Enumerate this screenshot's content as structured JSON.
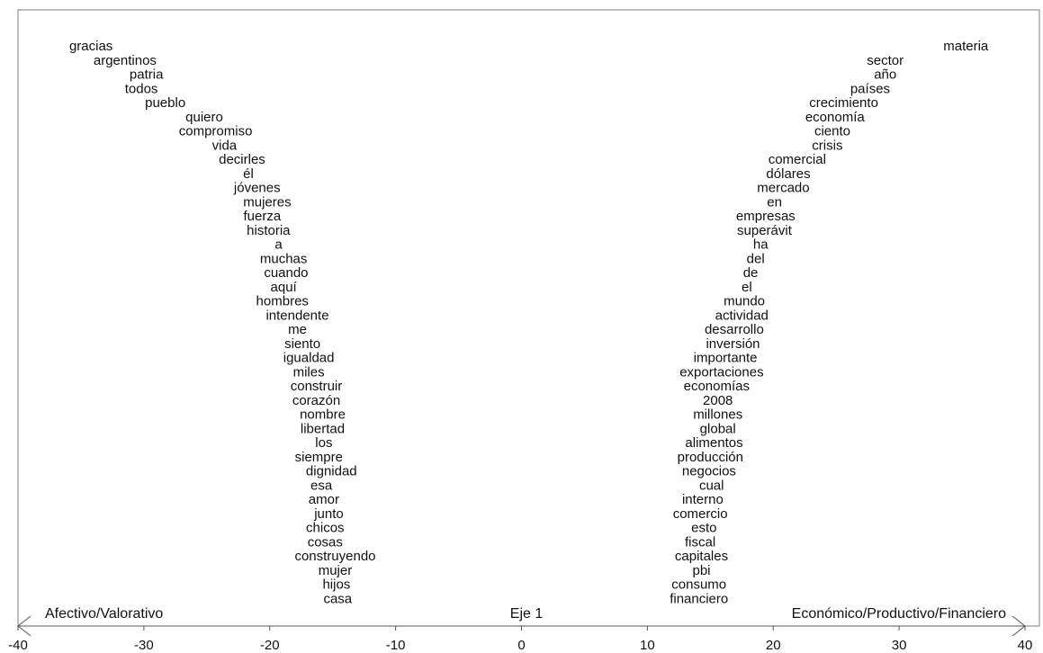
{
  "chart_data": {
    "type": "scatter",
    "xlim": [
      -40,
      40
    ],
    "xticks": [
      -40,
      -30,
      -20,
      -10,
      0,
      10,
      20,
      30,
      40
    ],
    "grid": false,
    "axis_title": "Eje 1",
    "left_pole_label": "Afectivo/Valorativo",
    "right_pole_label": "Económico/Productivo/Financiero",
    "left_words": [
      {
        "word": "gracias",
        "x": -34.2
      },
      {
        "word": "argentinos",
        "x": -31.5
      },
      {
        "word": "patria",
        "x": -29.8
      },
      {
        "word": "todos",
        "x": -30.2
      },
      {
        "word": "pueblo",
        "x": -28.3
      },
      {
        "word": "quiero",
        "x": -25.2
      },
      {
        "word": "compromiso",
        "x": -24.3
      },
      {
        "word": "vida",
        "x": -23.6
      },
      {
        "word": "decirles",
        "x": -22.2
      },
      {
        "word": "él",
        "x": -21.7
      },
      {
        "word": "jóvenes",
        "x": -21.0
      },
      {
        "word": "mujeres",
        "x": -20.2
      },
      {
        "word": "fuerza",
        "x": -20.6
      },
      {
        "word": "historia",
        "x": -20.1
      },
      {
        "word": "a",
        "x": -19.3
      },
      {
        "word": "muchas",
        "x": -18.9
      },
      {
        "word": "cuando",
        "x": -18.7
      },
      {
        "word": "aquí",
        "x": -18.9
      },
      {
        "word": "hombres",
        "x": -19.0
      },
      {
        "word": "intendente",
        "x": -17.8
      },
      {
        "word": "me",
        "x": -17.8
      },
      {
        "word": "siento",
        "x": -17.4
      },
      {
        "word": "igualdad",
        "x": -16.9
      },
      {
        "word": "miles",
        "x": -16.9
      },
      {
        "word": "construir",
        "x": -16.3
      },
      {
        "word": "corazón",
        "x": -16.3
      },
      {
        "word": "nombre",
        "x": -15.8
      },
      {
        "word": "libertad",
        "x": -15.8
      },
      {
        "word": "los",
        "x": -15.7
      },
      {
        "word": "siempre",
        "x": -16.1
      },
      {
        "word": "dignidad",
        "x": -15.1
      },
      {
        "word": "esa",
        "x": -15.9
      },
      {
        "word": "amor",
        "x": -15.7
      },
      {
        "word": "junto",
        "x": -15.3
      },
      {
        "word": "chicos",
        "x": -15.6
      },
      {
        "word": "cosas",
        "x": -15.6
      },
      {
        "word": "construyendo",
        "x": -14.8
      },
      {
        "word": "mujer",
        "x": -14.8
      },
      {
        "word": "hijos",
        "x": -14.7
      },
      {
        "word": "casa",
        "x": -14.6
      }
    ],
    "right_words": [
      {
        "word": "materia",
        "x": 35.3
      },
      {
        "word": "sector",
        "x": 28.9
      },
      {
        "word": "año",
        "x": 28.9
      },
      {
        "word": "países",
        "x": 27.7
      },
      {
        "word": "crecimiento",
        "x": 25.6
      },
      {
        "word": "economía",
        "x": 24.9
      },
      {
        "word": "ciento",
        "x": 24.7
      },
      {
        "word": "crisis",
        "x": 24.3
      },
      {
        "word": "comercial",
        "x": 21.9
      },
      {
        "word": "dólares",
        "x": 21.2
      },
      {
        "word": "mercado",
        "x": 20.8
      },
      {
        "word": "en",
        "x": 20.1
      },
      {
        "word": "empresas",
        "x": 19.4
      },
      {
        "word": "superávit",
        "x": 19.3
      },
      {
        "word": "ha",
        "x": 19.0
      },
      {
        "word": "del",
        "x": 18.6
      },
      {
        "word": "de",
        "x": 18.2
      },
      {
        "word": "el",
        "x": 17.9
      },
      {
        "word": "mundo",
        "x": 17.7
      },
      {
        "word": "actividad",
        "x": 17.5
      },
      {
        "word": "desarrollo",
        "x": 16.9
      },
      {
        "word": "inversión",
        "x": 16.8
      },
      {
        "word": "importante",
        "x": 16.2
      },
      {
        "word": "exportaciones",
        "x": 15.9
      },
      {
        "word": "economías",
        "x": 15.5
      },
      {
        "word": "2008",
        "x": 15.6
      },
      {
        "word": "millones",
        "x": 15.6
      },
      {
        "word": "global",
        "x": 15.6
      },
      {
        "word": "alimentos",
        "x": 15.3
      },
      {
        "word": "producción",
        "x": 15.0
      },
      {
        "word": "negocios",
        "x": 14.9
      },
      {
        "word": "cual",
        "x": 15.1
      },
      {
        "word": "interno",
        "x": 14.4
      },
      {
        "word": "comercio",
        "x": 14.2
      },
      {
        "word": "esto",
        "x": 14.5
      },
      {
        "word": "fiscal",
        "x": 14.2
      },
      {
        "word": "capitales",
        "x": 14.3
      },
      {
        "word": "pbi",
        "x": 14.3
      },
      {
        "word": "consumo",
        "x": 14.1
      },
      {
        "word": "financiero",
        "x": 14.1
      }
    ]
  }
}
